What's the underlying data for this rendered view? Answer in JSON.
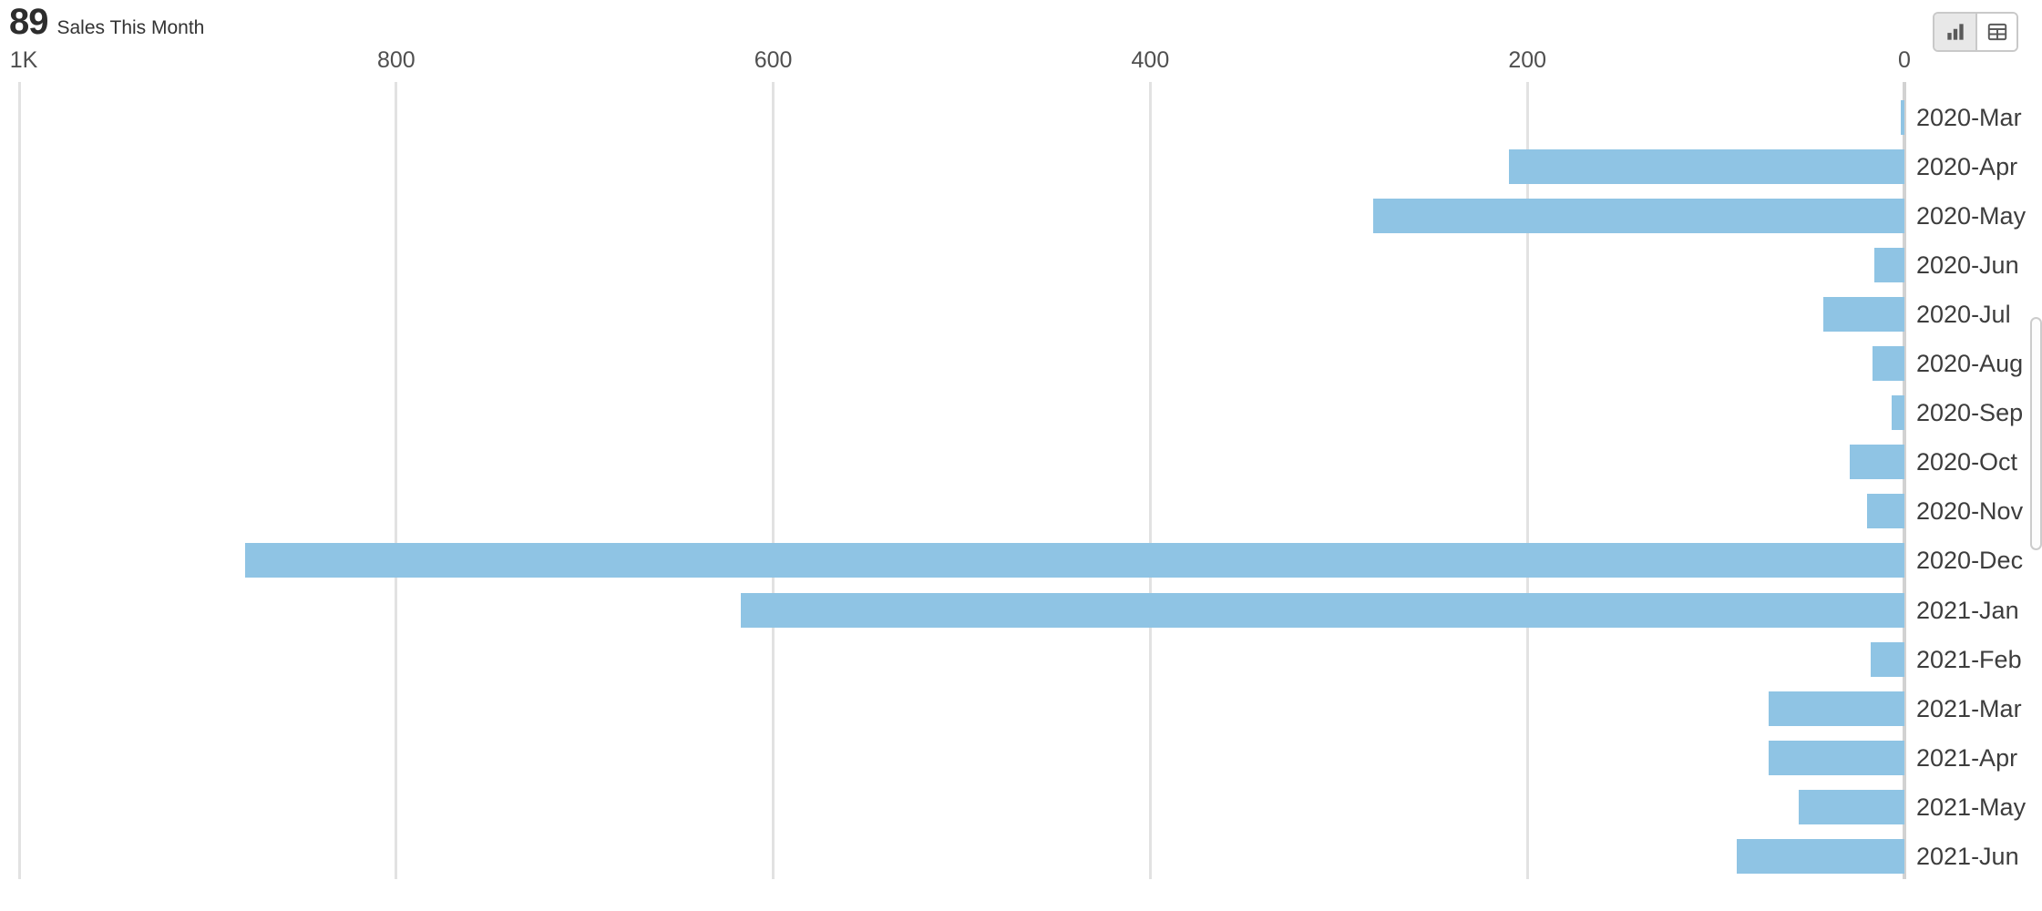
{
  "header": {
    "value": "89",
    "label": "Sales This Month"
  },
  "view_toggle": {
    "options": [
      {
        "id": "chart",
        "icon": "bar-chart-icon",
        "selected": true
      },
      {
        "id": "table",
        "icon": "table-icon",
        "selected": false
      }
    ]
  },
  "chart_data": {
    "type": "bar",
    "orientation": "horizontal",
    "value_axis_position": "top",
    "value_axis_direction": "zero-at-right",
    "title": "89 Sales This Month",
    "xlabel": "",
    "ylabel": "",
    "grid": true,
    "bar_color": "#8FC4E4",
    "gridline_color": "#e2e2e2",
    "axis_line_color": "#d2d2d2",
    "x_axis": {
      "range": [
        0,
        1000
      ],
      "ticks": [
        {
          "label": "1K",
          "value": 1000
        },
        {
          "label": "800",
          "value": 800
        },
        {
          "label": "600",
          "value": 600
        },
        {
          "label": "400",
          "value": 400
        },
        {
          "label": "200",
          "value": 200
        },
        {
          "label": "0",
          "value": 0
        }
      ]
    },
    "categories": [
      "2020-Mar",
      "2020-Apr",
      "2020-May",
      "2020-Jun",
      "2020-Jul",
      "2020-Aug",
      "2020-Sep",
      "2020-Oct",
      "2020-Nov",
      "2020-Dec",
      "2021-Jan",
      "2021-Feb",
      "2021-Mar",
      "2021-Apr",
      "2021-May",
      "2021-Jun"
    ],
    "values": [
      2,
      210,
      282,
      16,
      43,
      17,
      7,
      29,
      20,
      880,
      617,
      18,
      72,
      72,
      56,
      89
    ]
  }
}
